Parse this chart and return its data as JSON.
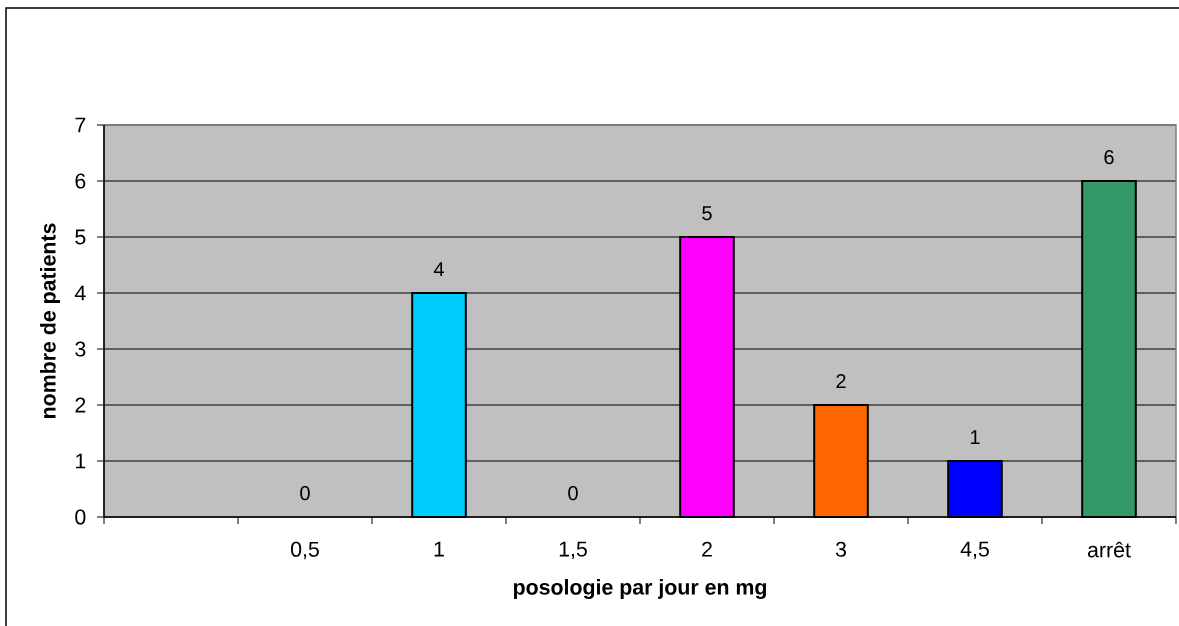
{
  "chart_data": {
    "type": "bar",
    "xlabel": "posologie par jour en mg",
    "ylabel": "nombre de patients",
    "categories": [
      null,
      "0,5",
      "1",
      "1,5",
      "2",
      "3",
      "4,5",
      "arrêt"
    ],
    "values": [
      null,
      0,
      4,
      0,
      5,
      2,
      1,
      6
    ],
    "colors": [
      null,
      null,
      "#00ccff",
      null,
      "#ff00ff",
      "#ff6600",
      "#0000ff",
      "#339966"
    ],
    "ylim": [
      0,
      7
    ],
    "yticks": [
      0,
      1,
      2,
      3,
      4,
      5,
      6,
      7
    ],
    "grid": "y",
    "data_labels": true
  }
}
